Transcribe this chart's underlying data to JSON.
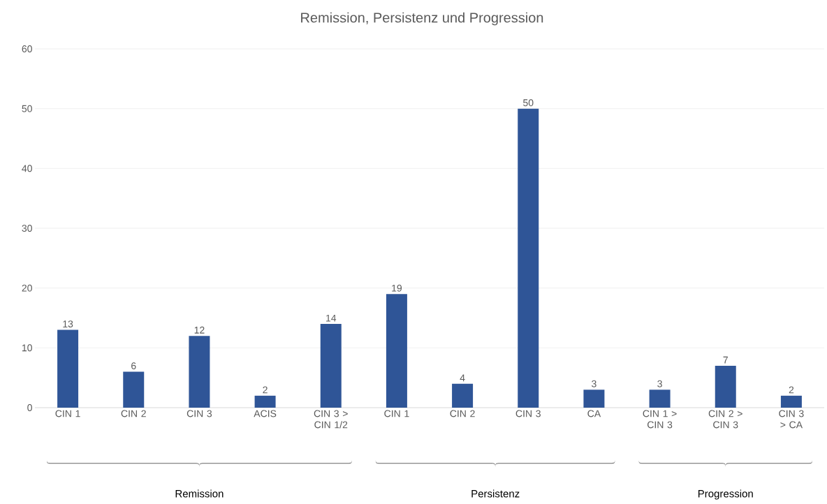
{
  "chart_data": {
    "type": "bar",
    "title": "Remission, Persistenz und Progression",
    "categories": [
      "CIN 1",
      "CIN 2",
      "CIN 3",
      "ACIS",
      "CIN 3 > CIN 1/2",
      "CIN 1",
      "CIN 2",
      "CIN 3",
      "CA",
      "CIN 1 > CIN 3",
      "CIN 2 > CIN 3",
      "CIN 3 > CA"
    ],
    "values": [
      13,
      6,
      12,
      2,
      14,
      19,
      4,
      50,
      3,
      3,
      7,
      2
    ],
    "color": "#2f5597",
    "ylim": [
      0,
      60
    ],
    "yticks": [
      0,
      10,
      20,
      30,
      40,
      50,
      60
    ],
    "grid": "y",
    "data_labels": true,
    "annotations": [
      "Remission",
      "Persistenz",
      "Progression"
    ]
  }
}
